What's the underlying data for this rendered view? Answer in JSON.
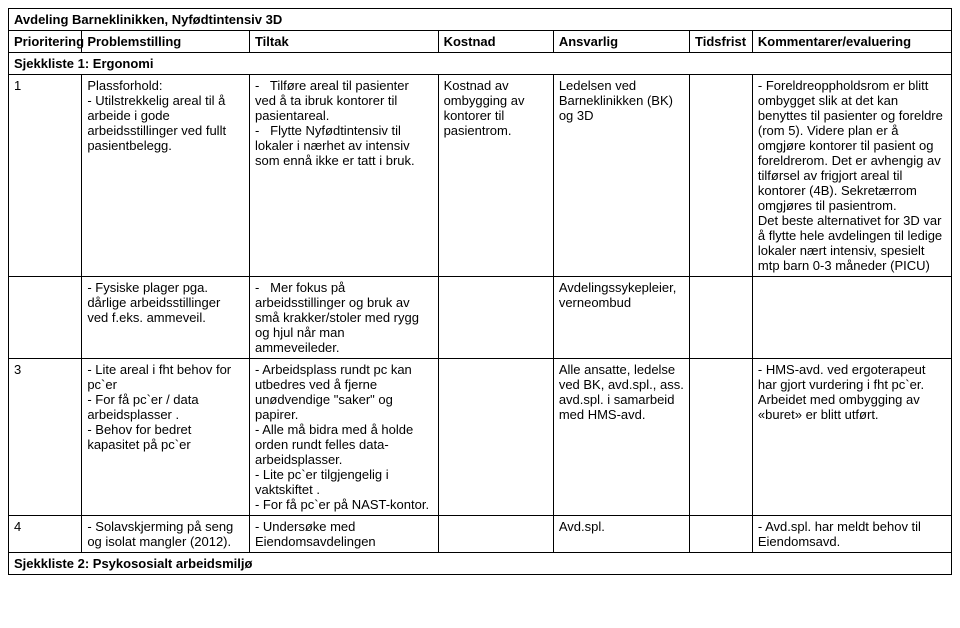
{
  "title": "Avdeling Barneklinikken, Nyfødtintensiv 3D",
  "headers": {
    "prioritering": "Prioritering",
    "problemstilling": "Problemstilling",
    "tiltak": "Tiltak",
    "kostnad": "Kostnad",
    "ansvarlig": "Ansvarlig",
    "tidsfrist": "Tidsfrist",
    "kommentarer": "Kommentarer/evaluering"
  },
  "section1_title": "Sjekkliste 1: Ergonomi",
  "rows": [
    {
      "pri": "1",
      "prob": "Plassforhold:\n- Utilstrekkelig areal til å arbeide i gode arbeidsstillinger ved fullt pasientbelegg.",
      "tilt": "-   Tilføre areal til pasienter ved å ta ibruk kontorer til pasientareal.\n-   Flytte Nyfødtintensiv til lokaler i nærhet av intensiv som ennå ikke er tatt i bruk.",
      "kost": "Kostnad av ombygging av kontorer til pasientrom.",
      "ans": "Ledelsen ved Barneklinikken (BK) og 3D",
      "tid": "",
      "kom": "- Foreldreoppholdsrom er blitt ombygget slik at det kan benyttes til pasienter og foreldre (rom 5). Videre plan er å omgjøre kontorer til pasient og foreldrerom. Det er avhengig av tilførsel av frigjort areal til kontorer (4B). Sekretærrom omgjøres til pasientrom.\nDet beste alternativet for 3D var å flytte hele avdelingen til ledige lokaler nært intensiv, spesielt mtp barn 0-3 måneder (PICU)"
    },
    {
      "pri": "",
      "prob": "- Fysiske plager pga. dårlige arbeidsstillinger ved f.eks. ammeveil.",
      "tilt": "-   Mer fokus på arbeidsstillinger og bruk av små krakker/stoler med rygg og hjul når man ammeveileder.",
      "kost": "",
      "ans": "Avdelingssykepleier, verneombud",
      "tid": "",
      "kom": ""
    },
    {
      "pri": "3",
      "prob": "- Lite areal i fht behov for pc`er\n- For få pc`er / data arbeidsplasser .\n- Behov for bedret kapasitet på pc`er",
      "tilt": "- Arbeidsplass rundt pc kan utbedres ved å fjerne unødvendige \"saker\" og papirer.\n- Alle må bidra med å holde orden rundt felles data-arbeidsplasser.\n- Lite pc`er tilgjengelig i vaktskiftet .\n- For få pc`er på NAST-kontor.",
      "kost": "",
      "ans": "Alle ansatte, ledelse ved BK, avd.spl., ass. avd.spl. i samarbeid med HMS-avd.",
      "tid": "",
      "kom": "- HMS-avd. ved ergoterapeut har gjort vurdering i fht pc`er. Arbeidet med ombygging av «buret» er blitt utført."
    },
    {
      "pri": "4",
      "prob": "- Solavskjerming på seng og isolat mangler (2012).",
      "tilt": "- Undersøke med Eiendomsavdelingen",
      "kost": "",
      "ans": "Avd.spl.",
      "tid": "",
      "kom": "- Avd.spl. har meldt behov til Eiendomsavd."
    }
  ],
  "section2_title": "Sjekkliste 2: Psykososialt arbeidsmiljø"
}
